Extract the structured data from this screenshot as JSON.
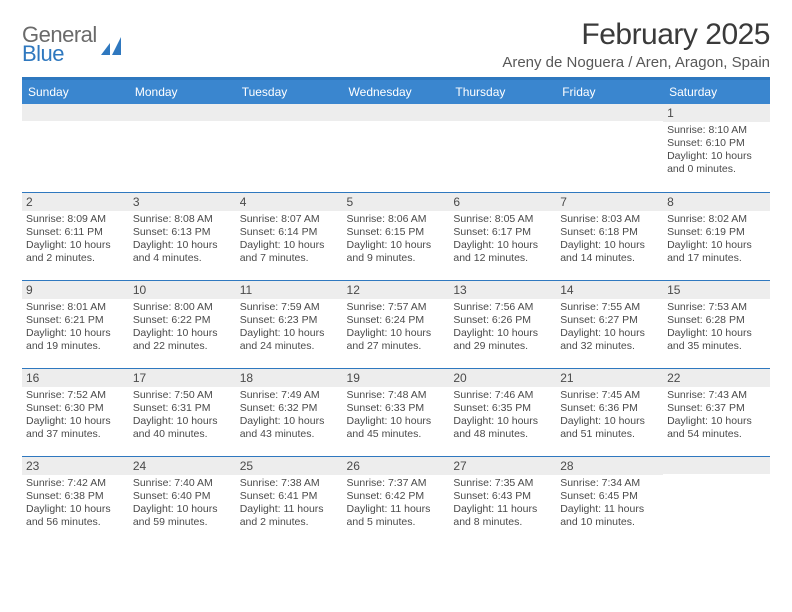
{
  "brand": {
    "general": "General",
    "blue": "Blue"
  },
  "title": "February 2025",
  "location": "Areny de Noguera / Aren, Aragon, Spain",
  "header_bar_color": "#3a86cf",
  "rule_color": "#2f78bf",
  "day_strip_color": "#ededed",
  "text_color": "#4a4a4a",
  "days": [
    "Sunday",
    "Monday",
    "Tuesday",
    "Wednesday",
    "Thursday",
    "Friday",
    "Saturday"
  ],
  "weeks": [
    [
      {
        "n": "",
        "sr": "",
        "ss": "",
        "dl": ""
      },
      {
        "n": "",
        "sr": "",
        "ss": "",
        "dl": ""
      },
      {
        "n": "",
        "sr": "",
        "ss": "",
        "dl": ""
      },
      {
        "n": "",
        "sr": "",
        "ss": "",
        "dl": ""
      },
      {
        "n": "",
        "sr": "",
        "ss": "",
        "dl": ""
      },
      {
        "n": "",
        "sr": "",
        "ss": "",
        "dl": ""
      },
      {
        "n": "1",
        "sr": "Sunrise: 8:10 AM",
        "ss": "Sunset: 6:10 PM",
        "dl": "Daylight: 10 hours and 0 minutes."
      }
    ],
    [
      {
        "n": "2",
        "sr": "Sunrise: 8:09 AM",
        "ss": "Sunset: 6:11 PM",
        "dl": "Daylight: 10 hours and 2 minutes."
      },
      {
        "n": "3",
        "sr": "Sunrise: 8:08 AM",
        "ss": "Sunset: 6:13 PM",
        "dl": "Daylight: 10 hours and 4 minutes."
      },
      {
        "n": "4",
        "sr": "Sunrise: 8:07 AM",
        "ss": "Sunset: 6:14 PM",
        "dl": "Daylight: 10 hours and 7 minutes."
      },
      {
        "n": "5",
        "sr": "Sunrise: 8:06 AM",
        "ss": "Sunset: 6:15 PM",
        "dl": "Daylight: 10 hours and 9 minutes."
      },
      {
        "n": "6",
        "sr": "Sunrise: 8:05 AM",
        "ss": "Sunset: 6:17 PM",
        "dl": "Daylight: 10 hours and 12 minutes."
      },
      {
        "n": "7",
        "sr": "Sunrise: 8:03 AM",
        "ss": "Sunset: 6:18 PM",
        "dl": "Daylight: 10 hours and 14 minutes."
      },
      {
        "n": "8",
        "sr": "Sunrise: 8:02 AM",
        "ss": "Sunset: 6:19 PM",
        "dl": "Daylight: 10 hours and 17 minutes."
      }
    ],
    [
      {
        "n": "9",
        "sr": "Sunrise: 8:01 AM",
        "ss": "Sunset: 6:21 PM",
        "dl": "Daylight: 10 hours and 19 minutes."
      },
      {
        "n": "10",
        "sr": "Sunrise: 8:00 AM",
        "ss": "Sunset: 6:22 PM",
        "dl": "Daylight: 10 hours and 22 minutes."
      },
      {
        "n": "11",
        "sr": "Sunrise: 7:59 AM",
        "ss": "Sunset: 6:23 PM",
        "dl": "Daylight: 10 hours and 24 minutes."
      },
      {
        "n": "12",
        "sr": "Sunrise: 7:57 AM",
        "ss": "Sunset: 6:24 PM",
        "dl": "Daylight: 10 hours and 27 minutes."
      },
      {
        "n": "13",
        "sr": "Sunrise: 7:56 AM",
        "ss": "Sunset: 6:26 PM",
        "dl": "Daylight: 10 hours and 29 minutes."
      },
      {
        "n": "14",
        "sr": "Sunrise: 7:55 AM",
        "ss": "Sunset: 6:27 PM",
        "dl": "Daylight: 10 hours and 32 minutes."
      },
      {
        "n": "15",
        "sr": "Sunrise: 7:53 AM",
        "ss": "Sunset: 6:28 PM",
        "dl": "Daylight: 10 hours and 35 minutes."
      }
    ],
    [
      {
        "n": "16",
        "sr": "Sunrise: 7:52 AM",
        "ss": "Sunset: 6:30 PM",
        "dl": "Daylight: 10 hours and 37 minutes."
      },
      {
        "n": "17",
        "sr": "Sunrise: 7:50 AM",
        "ss": "Sunset: 6:31 PM",
        "dl": "Daylight: 10 hours and 40 minutes."
      },
      {
        "n": "18",
        "sr": "Sunrise: 7:49 AM",
        "ss": "Sunset: 6:32 PM",
        "dl": "Daylight: 10 hours and 43 minutes."
      },
      {
        "n": "19",
        "sr": "Sunrise: 7:48 AM",
        "ss": "Sunset: 6:33 PM",
        "dl": "Daylight: 10 hours and 45 minutes."
      },
      {
        "n": "20",
        "sr": "Sunrise: 7:46 AM",
        "ss": "Sunset: 6:35 PM",
        "dl": "Daylight: 10 hours and 48 minutes."
      },
      {
        "n": "21",
        "sr": "Sunrise: 7:45 AM",
        "ss": "Sunset: 6:36 PM",
        "dl": "Daylight: 10 hours and 51 minutes."
      },
      {
        "n": "22",
        "sr": "Sunrise: 7:43 AM",
        "ss": "Sunset: 6:37 PM",
        "dl": "Daylight: 10 hours and 54 minutes."
      }
    ],
    [
      {
        "n": "23",
        "sr": "Sunrise: 7:42 AM",
        "ss": "Sunset: 6:38 PM",
        "dl": "Daylight: 10 hours and 56 minutes."
      },
      {
        "n": "24",
        "sr": "Sunrise: 7:40 AM",
        "ss": "Sunset: 6:40 PM",
        "dl": "Daylight: 10 hours and 59 minutes."
      },
      {
        "n": "25",
        "sr": "Sunrise: 7:38 AM",
        "ss": "Sunset: 6:41 PM",
        "dl": "Daylight: 11 hours and 2 minutes."
      },
      {
        "n": "26",
        "sr": "Sunrise: 7:37 AM",
        "ss": "Sunset: 6:42 PM",
        "dl": "Daylight: 11 hours and 5 minutes."
      },
      {
        "n": "27",
        "sr": "Sunrise: 7:35 AM",
        "ss": "Sunset: 6:43 PM",
        "dl": "Daylight: 11 hours and 8 minutes."
      },
      {
        "n": "28",
        "sr": "Sunrise: 7:34 AM",
        "ss": "Sunset: 6:45 PM",
        "dl": "Daylight: 11 hours and 10 minutes."
      },
      {
        "n": "",
        "sr": "",
        "ss": "",
        "dl": ""
      }
    ]
  ]
}
